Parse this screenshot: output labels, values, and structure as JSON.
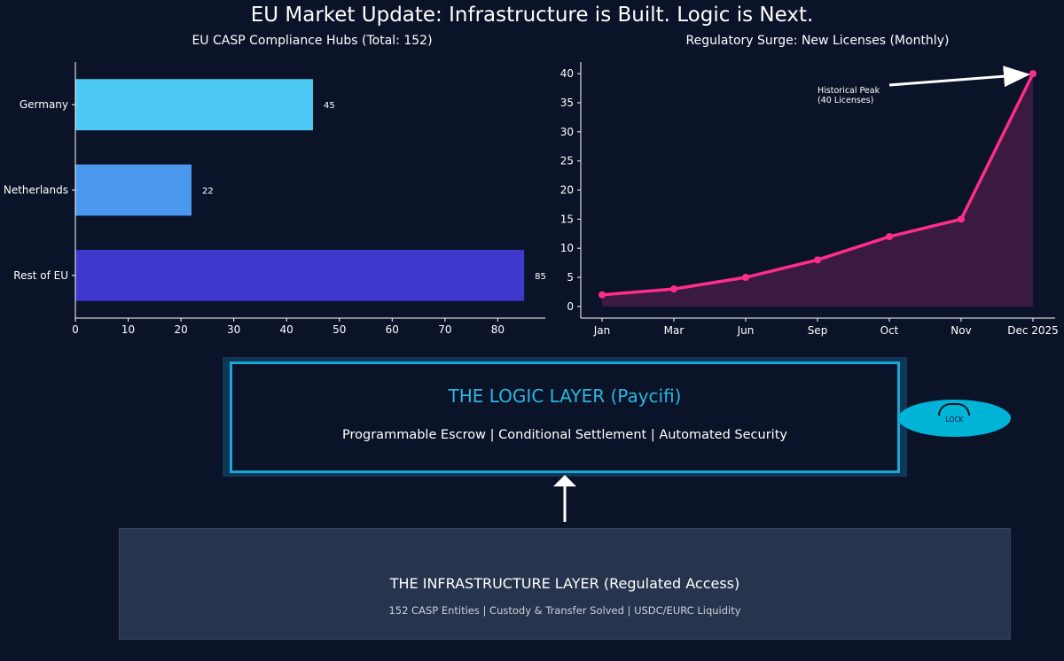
{
  "page": {
    "title": "EU Market Update: Infrastructure is Built. Logic is Next."
  },
  "colors": {
    "background": "#0b1328",
    "bar_germany": "#4dc9f3",
    "bar_netherlands": "#4a97ee",
    "bar_rest": "#3f38cc",
    "line": "#ff2d8a",
    "area": "#3a1a40",
    "accent": "#29b6e0"
  },
  "chart_data": [
    {
      "type": "bar",
      "orientation": "horizontal",
      "title": "EU CASP Compliance Hubs (Total: 152)",
      "categories": [
        "Germany",
        "Netherlands",
        "Rest of EU"
      ],
      "values": [
        45,
        22,
        85
      ],
      "data_labels": [
        "45",
        "22",
        "85"
      ],
      "xlim": [
        0,
        89
      ],
      "xticks": [
        0,
        10,
        20,
        30,
        40,
        50,
        60,
        70,
        80
      ],
      "xlabel": "",
      "ylabel": "",
      "grid": false
    },
    {
      "type": "area",
      "title": "Regulatory Surge: New Licenses (Monthly)",
      "categories": [
        "Jan",
        "Mar",
        "Jun",
        "Sep",
        "Oct",
        "Nov",
        "Dec 2025"
      ],
      "values": [
        2,
        3,
        5,
        8,
        12,
        15,
        40
      ],
      "ylim": [
        -2,
        42
      ],
      "yticks": [
        0,
        5,
        10,
        15,
        20,
        25,
        30,
        35,
        40
      ],
      "xlabel": "",
      "ylabel": "",
      "grid": false,
      "annotation": {
        "lines": [
          "Historical Peak",
          "(40 Licenses)"
        ],
        "target_index": 6
      }
    }
  ],
  "logic_layer": {
    "title": "THE LOGIC LAYER (Paycifi)",
    "subtitle": "Programmable Escrow | Conditional Settlement | Automated Security",
    "lock_label": "LOCK"
  },
  "infrastructure_layer": {
    "title": "THE INFRASTRUCTURE LAYER (Regulated Access)",
    "subtitle": "152 CASP Entities | Custody & Transfer Solved | USDC/EURC Liquidity"
  }
}
